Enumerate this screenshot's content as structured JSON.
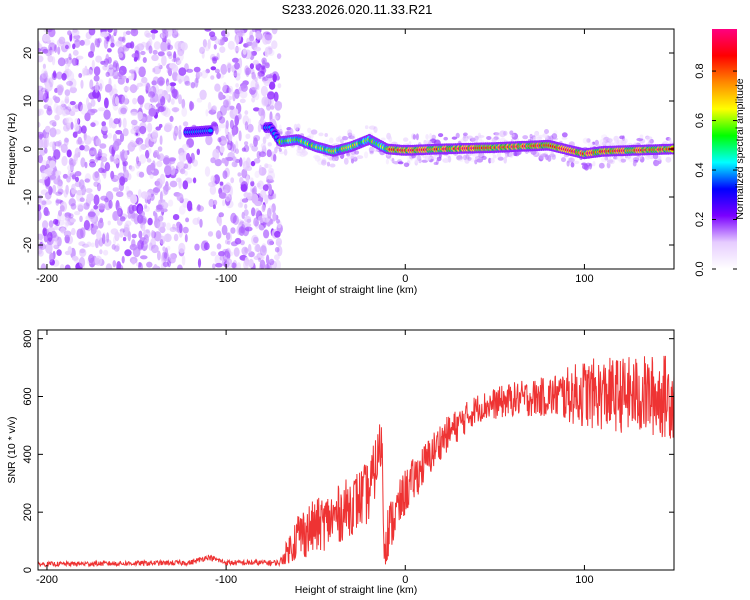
{
  "title": "S233.2026.020.11.33.R21",
  "chart_data": [
    {
      "type": "heatmap",
      "name": "spectrogram",
      "xlabel": "Height of straight line (km)",
      "ylabel": "Frequency (Hz)",
      "xlim": [
        -205,
        150
      ],
      "ylim": [
        -25,
        25
      ],
      "xticks": [
        -200,
        -100,
        0,
        100
      ],
      "xtick_labels": [
        "-200",
        "-100",
        "0",
        "100"
      ],
      "yticks": [
        -20,
        -10,
        0,
        10,
        20
      ],
      "ytick_labels": [
        "-20",
        "-10",
        "0",
        "10",
        "20"
      ],
      "colorbar": {
        "label": "Normalized spectral amplitude",
        "range": [
          0.0,
          0.97
        ],
        "ticks": [
          0.0,
          0.2,
          0.4,
          0.6,
          0.8
        ],
        "tick_labels": [
          "0.0",
          "0.2",
          "0.4",
          "0.6",
          "0.8"
        ],
        "colormap": [
          "#ffffff",
          "#e6ccff",
          "#7a00ff",
          "#0000ff",
          "#00ffff",
          "#00ff00",
          "#ffff00",
          "#ff8800",
          "#ff0000",
          "#ff0080"
        ]
      },
      "signal_track": [
        {
          "x": -120,
          "y": 3.5
        },
        {
          "x": -110,
          "y": 3.8
        },
        {
          "x": -75,
          "y": 4.5
        },
        {
          "x": -70,
          "y": 1.5
        },
        {
          "x": -60,
          "y": 2.0
        },
        {
          "x": -50,
          "y": 0.5
        },
        {
          "x": -40,
          "y": -0.5
        },
        {
          "x": -30,
          "y": 0.5
        },
        {
          "x": -20,
          "y": 2.0
        },
        {
          "x": -10,
          "y": 0.0
        },
        {
          "x": 0,
          "y": -0.3
        },
        {
          "x": 20,
          "y": 0.0
        },
        {
          "x": 50,
          "y": 0.3
        },
        {
          "x": 80,
          "y": 0.8
        },
        {
          "x": 100,
          "y": -1.0
        },
        {
          "x": 110,
          "y": -0.5
        },
        {
          "x": 150,
          "y": 0.0
        }
      ]
    },
    {
      "type": "line",
      "name": "snr",
      "xlabel": "Height of straight line (km)",
      "ylabel": "SNR (10 * v/v)",
      "xlim": [
        -205,
        150
      ],
      "ylim": [
        0,
        830
      ],
      "xticks": [
        -200,
        -100,
        0,
        100
      ],
      "xtick_labels": [
        "-200",
        "-100",
        "0",
        "100"
      ],
      "yticks": [
        0,
        200,
        400,
        600,
        800
      ],
      "ytick_labels": [
        "0",
        "200",
        "400",
        "600",
        "800"
      ],
      "color": "#ee3333",
      "envelope": [
        {
          "x": -205,
          "y": 20
        },
        {
          "x": -120,
          "y": 25
        },
        {
          "x": -110,
          "y": 45
        },
        {
          "x": -100,
          "y": 25
        },
        {
          "x": -70,
          "y": 25
        },
        {
          "x": -60,
          "y": 120
        },
        {
          "x": -40,
          "y": 180
        },
        {
          "x": -20,
          "y": 270
        },
        {
          "x": -13,
          "y": 450
        },
        {
          "x": -12,
          "y": 100
        },
        {
          "x": 0,
          "y": 270
        },
        {
          "x": 20,
          "y": 450
        },
        {
          "x": 40,
          "y": 560
        },
        {
          "x": 60,
          "y": 590
        },
        {
          "x": 80,
          "y": 600
        },
        {
          "x": 100,
          "y": 610
        },
        {
          "x": 150,
          "y": 600
        }
      ],
      "noise_amplitude": [
        {
          "x": -205,
          "y": 8
        },
        {
          "x": -70,
          "y": 10
        },
        {
          "x": -60,
          "y": 90
        },
        {
          "x": -20,
          "y": 110
        },
        {
          "x": 0,
          "y": 80
        },
        {
          "x": 40,
          "y": 50
        },
        {
          "x": 80,
          "y": 70
        },
        {
          "x": 100,
          "y": 120
        },
        {
          "x": 150,
          "y": 150
        }
      ]
    }
  ]
}
